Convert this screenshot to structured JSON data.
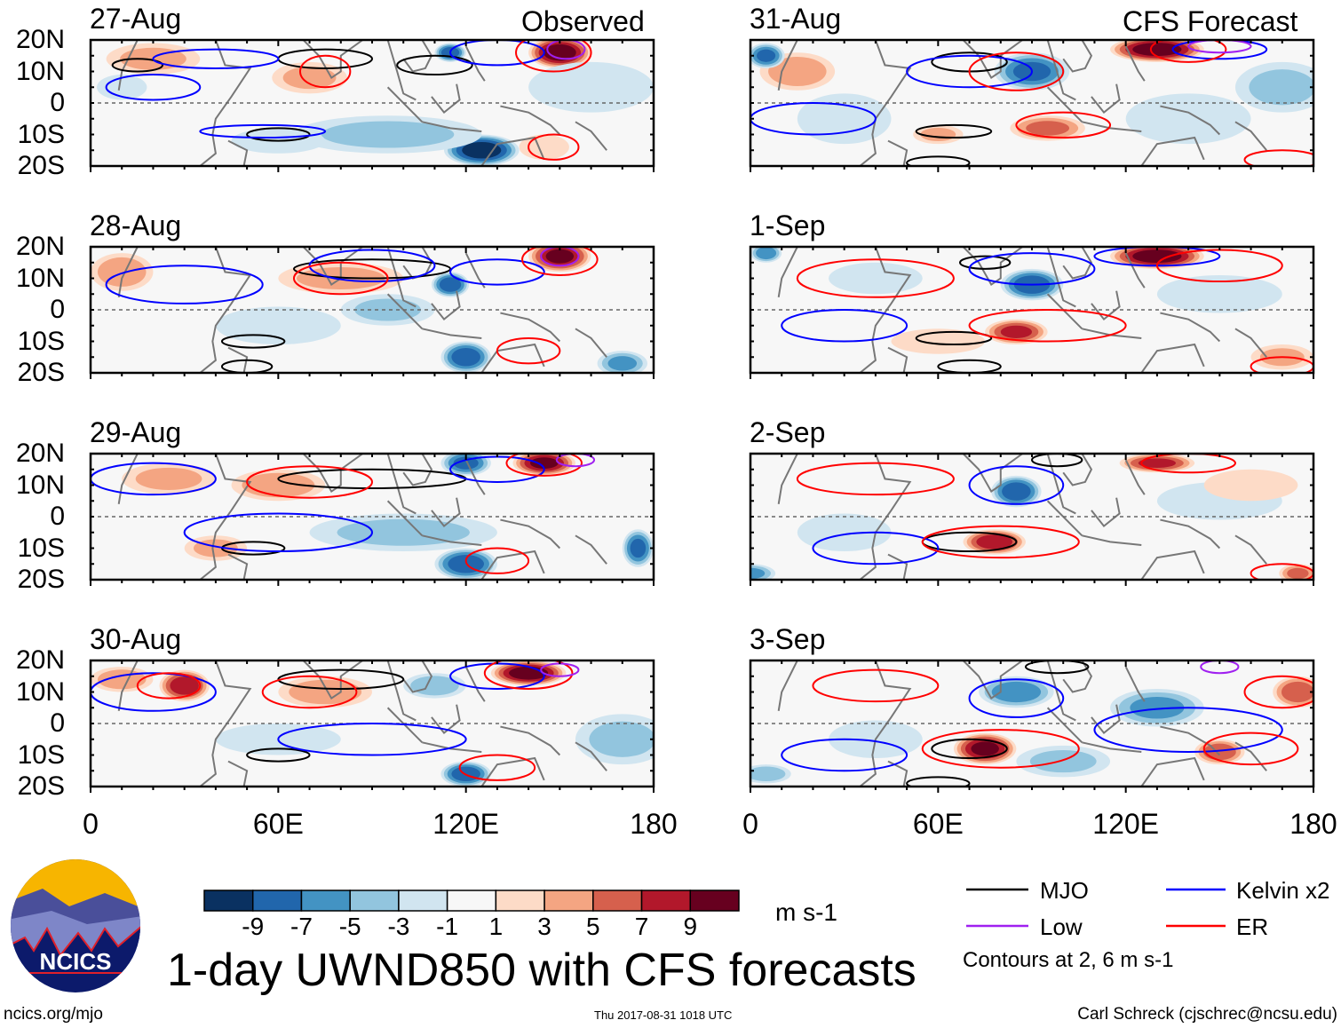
{
  "title": "1-day UWND850 with CFS forecasts",
  "headers": {
    "left": "Observed",
    "right": "CFS Forecast"
  },
  "lat_labels": [
    "20N",
    "10N",
    "0",
    "10S",
    "20S"
  ],
  "lon_labels": [
    "0",
    "60E",
    "120E",
    "180"
  ],
  "colorbar": {
    "units": "m s-1",
    "labels": [
      "-9",
      "-7",
      "-5",
      "-3",
      "-1",
      "1",
      "3",
      "5",
      "7",
      "9"
    ],
    "colors": [
      "#0a3161",
      "#2166ac",
      "#4393c3",
      "#92c5de",
      "#d1e5f0",
      "#f7f7f7",
      "#fddbc7",
      "#f4a582",
      "#d6604d",
      "#b2182b",
      "#67001f"
    ]
  },
  "legend": {
    "mjo": "MJO",
    "kelvin": "Kelvin x2",
    "low": "Low",
    "er": "ER",
    "note": "Contours at 2, 6 m s-1",
    "colors": {
      "mjo": "#000000",
      "kelvin": "#0000ff",
      "low": "#a020f0",
      "er": "#ff0000"
    }
  },
  "footer": {
    "url": "ncics.org/mjo",
    "timestamp": "Thu 2017-08-31 1018 UTC",
    "credit": "Carl Schreck (cjschrec@ncsu.edu)"
  },
  "logo": {
    "text": "NCICS"
  },
  "chart_data": {
    "type": "heatmap",
    "variable": "850-hPa zonal wind anomaly",
    "units": "m s-1",
    "lon_range": [
      0,
      180
    ],
    "lat_range": [
      -20,
      20
    ],
    "panels": [
      {
        "date": "27-Aug",
        "source": "Observed",
        "features": [
          [
            150,
            16,
            10,
            5,
            11
          ],
          [
            20,
            14,
            15,
            5,
            4
          ],
          [
            70,
            8,
            12,
            5,
            4
          ],
          [
            125,
            -15,
            12,
            5,
            -11
          ],
          [
            115,
            16,
            5,
            3,
            -9
          ],
          [
            95,
            -10,
            30,
            6,
            -4
          ],
          [
            160,
            5,
            20,
            8,
            -3
          ],
          [
            60,
            -12,
            15,
            4,
            -3
          ],
          [
            145,
            -14,
            8,
            4,
            3
          ],
          [
            10,
            5,
            8,
            4,
            -3
          ]
        ],
        "contours": [
          [
            "mjo",
            15,
            12,
            8,
            2
          ],
          [
            "mjo",
            75,
            14,
            15,
            3
          ],
          [
            "mjo",
            110,
            12,
            12,
            3
          ],
          [
            "mjo",
            60,
            -10,
            10,
            2
          ],
          [
            "kelvin",
            20,
            5,
            15,
            4
          ],
          [
            "kelvin",
            40,
            14,
            20,
            3
          ],
          [
            "kelvin",
            55,
            -9,
            20,
            2
          ],
          [
            "kelvin",
            130,
            16,
            15,
            4
          ],
          [
            "er",
            148,
            16,
            12,
            6
          ],
          [
            "er",
            75,
            10,
            8,
            5
          ],
          [
            "er",
            148,
            -14,
            8,
            4
          ],
          [
            "low",
            152,
            17,
            6,
            3
          ]
        ]
      },
      {
        "date": "31-Aug",
        "source": "CFS Forecast",
        "features": [
          [
            130,
            17,
            15,
            4,
            11
          ],
          [
            15,
            10,
            12,
            6,
            5
          ],
          [
            90,
            10,
            12,
            6,
            -8
          ],
          [
            95,
            -8,
            12,
            4,
            6
          ],
          [
            60,
            -10,
            8,
            3,
            4
          ],
          [
            140,
            -5,
            20,
            8,
            -3
          ],
          [
            5,
            15,
            6,
            4,
            -8
          ],
          [
            170,
            5,
            15,
            8,
            -4
          ],
          [
            30,
            -5,
            15,
            8,
            -3
          ]
        ],
        "contours": [
          [
            "mjo",
            70,
            13,
            12,
            3
          ],
          [
            "mjo",
            65,
            -9,
            12,
            2
          ],
          [
            "mjo",
            60,
            -19,
            10,
            2
          ],
          [
            "kelvin",
            20,
            -5,
            20,
            5
          ],
          [
            "kelvin",
            70,
            10,
            20,
            5
          ],
          [
            "kelvin",
            150,
            17,
            15,
            3
          ],
          [
            "er",
            85,
            10,
            15,
            6
          ],
          [
            "er",
            100,
            -7,
            15,
            4
          ],
          [
            "er",
            140,
            17,
            12,
            4
          ],
          [
            "er",
            170,
            -18,
            12,
            3
          ],
          [
            "low",
            150,
            18,
            10,
            2
          ]
        ]
      },
      {
        "date": "28-Aug",
        "source": "Observed",
        "features": [
          [
            150,
            17,
            10,
            5,
            10
          ],
          [
            115,
            8,
            6,
            4,
            -9
          ],
          [
            120,
            -15,
            8,
            5,
            -9
          ],
          [
            10,
            12,
            10,
            6,
            5
          ],
          [
            80,
            10,
            20,
            5,
            4
          ],
          [
            60,
            -5,
            20,
            6,
            -3
          ],
          [
            170,
            -17,
            8,
            4,
            -6
          ],
          [
            95,
            0,
            15,
            5,
            -4
          ]
        ],
        "contours": [
          [
            "mjo",
            90,
            13,
            25,
            3
          ],
          [
            "mjo",
            52,
            -10,
            10,
            2
          ],
          [
            "mjo",
            50,
            -18,
            8,
            2
          ],
          [
            "kelvin",
            30,
            8,
            25,
            6
          ],
          [
            "kelvin",
            90,
            14,
            20,
            5
          ],
          [
            "kelvin",
            130,
            12,
            15,
            4
          ],
          [
            "er",
            150,
            16,
            12,
            5
          ],
          [
            "er",
            80,
            10,
            15,
            5
          ],
          [
            "er",
            140,
            -13,
            10,
            4
          ],
          [
            "low",
            150,
            17,
            6,
            3
          ]
        ]
      },
      {
        "date": "1-Sep",
        "source": "CFS Forecast",
        "features": [
          [
            130,
            17,
            15,
            4,
            11
          ],
          [
            90,
            8,
            10,
            5,
            -9
          ],
          [
            85,
            -7,
            10,
            4,
            8
          ],
          [
            5,
            18,
            5,
            3,
            -7
          ],
          [
            60,
            -10,
            15,
            4,
            3
          ],
          [
            150,
            5,
            20,
            6,
            -3
          ],
          [
            170,
            -15,
            10,
            4,
            4
          ],
          [
            40,
            10,
            15,
            5,
            -2
          ]
        ],
        "contours": [
          [
            "mjo",
            75,
            15,
            8,
            2
          ],
          [
            "mjo",
            65,
            -9,
            12,
            2
          ],
          [
            "mjo",
            70,
            -18,
            10,
            2
          ],
          [
            "kelvin",
            90,
            13,
            20,
            5
          ],
          [
            "kelvin",
            130,
            17,
            20,
            3
          ],
          [
            "kelvin",
            30,
            -5,
            20,
            5
          ],
          [
            "er",
            95,
            -5,
            25,
            5
          ],
          [
            "er",
            40,
            10,
            25,
            6
          ],
          [
            "er",
            170,
            -18,
            10,
            3
          ],
          [
            "er",
            150,
            14,
            20,
            5
          ]
        ]
      },
      {
        "date": "29-Aug",
        "source": "Observed",
        "features": [
          [
            145,
            17,
            10,
            4,
            10
          ],
          [
            120,
            17,
            8,
            4,
            -8
          ],
          [
            120,
            -15,
            10,
            5,
            -9
          ],
          [
            175,
            -10,
            5,
            6,
            -8
          ],
          [
            60,
            10,
            15,
            5,
            5
          ],
          [
            25,
            12,
            15,
            5,
            4
          ],
          [
            100,
            -5,
            30,
            6,
            -4
          ],
          [
            40,
            -10,
            10,
            4,
            4
          ]
        ],
        "contours": [
          [
            "mjo",
            90,
            12,
            30,
            3
          ],
          [
            "mjo",
            52,
            -10,
            10,
            2
          ],
          [
            "kelvin",
            20,
            12,
            20,
            5
          ],
          [
            "kelvin",
            60,
            -5,
            30,
            6
          ],
          [
            "kelvin",
            130,
            15,
            15,
            4
          ],
          [
            "er",
            70,
            11,
            20,
            5
          ],
          [
            "er",
            145,
            17,
            12,
            4
          ],
          [
            "er",
            130,
            -14,
            10,
            4
          ],
          [
            "low",
            155,
            18,
            6,
            2
          ]
        ]
      },
      {
        "date": "2-Sep",
        "source": "CFS Forecast",
        "features": [
          [
            130,
            17,
            12,
            3,
            8
          ],
          [
            85,
            8,
            8,
            5,
            -9
          ],
          [
            78,
            -8,
            10,
            4,
            9
          ],
          [
            175,
            -18,
            6,
            3,
            6
          ],
          [
            0,
            -18,
            8,
            3,
            -6
          ],
          [
            150,
            5,
            20,
            6,
            -3
          ],
          [
            160,
            10,
            15,
            5,
            3
          ],
          [
            30,
            -5,
            15,
            6,
            -3
          ]
        ],
        "contours": [
          [
            "mjo",
            70,
            -8,
            15,
            3
          ],
          [
            "mjo",
            98,
            18,
            8,
            2
          ],
          [
            "kelvin",
            85,
            10,
            15,
            6
          ],
          [
            "kelvin",
            40,
            -10,
            20,
            5
          ],
          [
            "er",
            80,
            -8,
            25,
            5
          ],
          [
            "er",
            40,
            12,
            25,
            5
          ],
          [
            "er",
            140,
            17,
            15,
            3
          ],
          [
            "er",
            170,
            -18,
            10,
            3
          ]
        ]
      },
      {
        "date": "30-Aug",
        "source": "Observed",
        "features": [
          [
            140,
            16,
            12,
            4,
            11
          ],
          [
            30,
            12,
            8,
            5,
            9
          ],
          [
            10,
            14,
            10,
            4,
            5
          ],
          [
            75,
            10,
            15,
            5,
            5
          ],
          [
            120,
            -16,
            8,
            4,
            -9
          ],
          [
            110,
            12,
            10,
            4,
            -5
          ],
          [
            170,
            -5,
            15,
            8,
            -4
          ],
          [
            60,
            -5,
            20,
            5,
            -3
          ]
        ],
        "contours": [
          [
            "mjo",
            80,
            14,
            20,
            3
          ],
          [
            "mjo",
            60,
            -10,
            10,
            2
          ],
          [
            "kelvin",
            20,
            10,
            20,
            6
          ],
          [
            "kelvin",
            90,
            -5,
            30,
            5
          ],
          [
            "kelvin",
            130,
            15,
            15,
            4
          ],
          [
            "er",
            140,
            16,
            14,
            5
          ],
          [
            "er",
            70,
            10,
            15,
            5
          ],
          [
            "er",
            130,
            -14,
            12,
            4
          ],
          [
            "er",
            25,
            12,
            10,
            4
          ],
          [
            "low",
            150,
            17,
            6,
            2
          ]
        ]
      },
      {
        "date": "3-Sep",
        "source": "CFS Forecast",
        "features": [
          [
            75,
            -8,
            10,
            5,
            10
          ],
          [
            150,
            -9,
            8,
            4,
            7
          ],
          [
            175,
            10,
            8,
            5,
            7
          ],
          [
            85,
            10,
            12,
            5,
            -7
          ],
          [
            130,
            5,
            15,
            6,
            -6
          ],
          [
            100,
            -12,
            15,
            5,
            -4
          ],
          [
            5,
            -16,
            8,
            3,
            -5
          ],
          [
            40,
            -5,
            15,
            6,
            -2
          ]
        ],
        "contours": [
          [
            "mjo",
            70,
            -8,
            12,
            3
          ],
          [
            "mjo",
            98,
            18,
            10,
            2
          ],
          [
            "mjo",
            60,
            -19,
            10,
            2
          ],
          [
            "kelvin",
            85,
            8,
            15,
            6
          ],
          [
            "kelvin",
            140,
            -2,
            30,
            7
          ],
          [
            "kelvin",
            30,
            -10,
            20,
            5
          ],
          [
            "er",
            80,
            -8,
            25,
            6
          ],
          [
            "er",
            160,
            -8,
            15,
            5
          ],
          [
            "er",
            170,
            10,
            12,
            5
          ],
          [
            "er",
            40,
            12,
            20,
            5
          ],
          [
            "low",
            150,
            18,
            6,
            2
          ]
        ]
      }
    ]
  }
}
